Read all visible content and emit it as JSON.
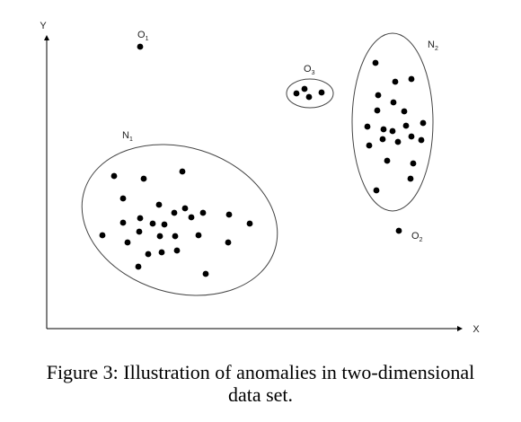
{
  "axes": {
    "x_label": "X",
    "y_label": "Y"
  },
  "clusters": [
    {
      "id": "N1",
      "letter": "N",
      "sub": "1"
    },
    {
      "id": "N2",
      "letter": "N",
      "sub": "2"
    },
    {
      "id": "O3",
      "letter": "O",
      "sub": "3"
    }
  ],
  "anomalies": [
    {
      "id": "O1",
      "letter": "O",
      "sub": "1"
    },
    {
      "id": "O2",
      "letter": "O",
      "sub": "2"
    }
  ],
  "caption": {
    "line1": "Figure 3: Illustration of anomalies in two-dimensional",
    "line2": "data set."
  }
}
